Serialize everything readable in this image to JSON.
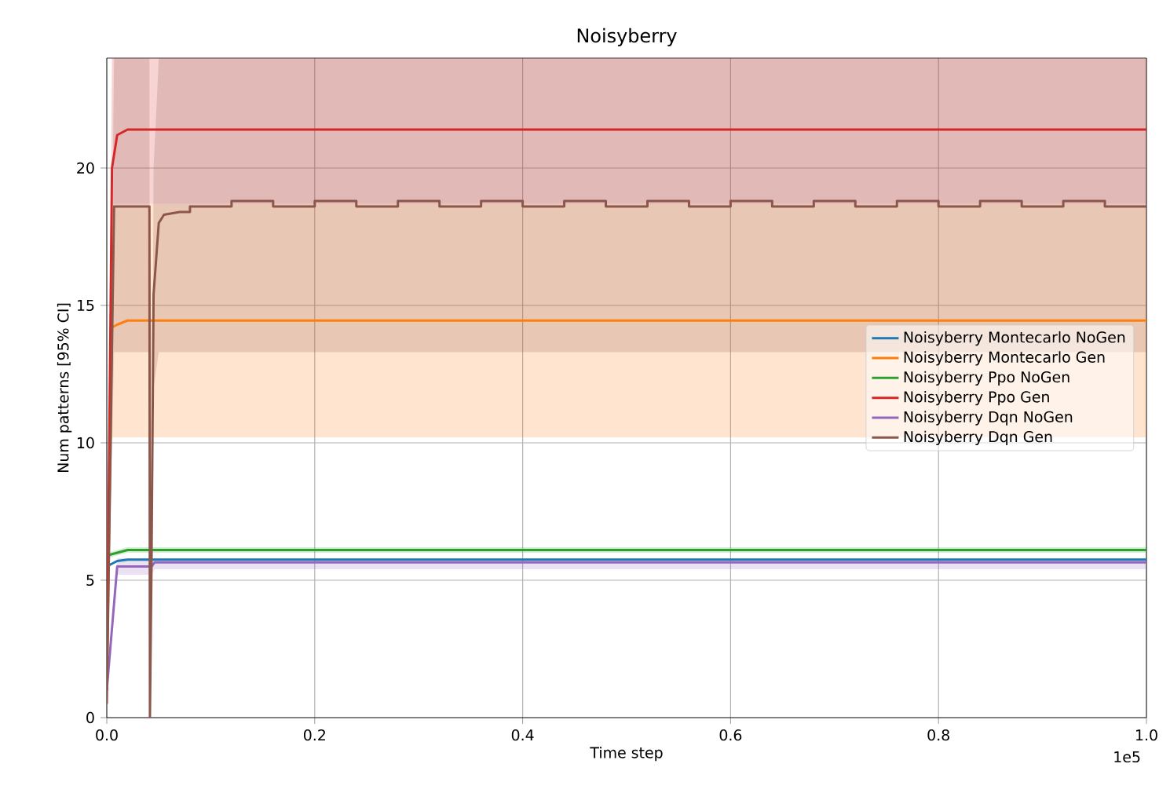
{
  "chart_data": {
    "type": "line",
    "title": "Noisyberry",
    "xlabel": "Time step",
    "ylabel": "Num patterns [95% CI]",
    "xlim": [
      0,
      1
    ],
    "ylim": [
      0,
      24
    ],
    "xticks": [
      {
        "value": 0,
        "label": "0.0"
      },
      0.2,
      0.4,
      0.6,
      0.8,
      {
        "value": 1,
        "label": "1.0"
      }
    ],
    "yticks": [
      0,
      5,
      10,
      15,
      20
    ],
    "grid": true,
    "legend": "right",
    "line_style": "solid",
    "marker": "none",
    "annotations": [
      "1e5"
    ],
    "series": [
      {
        "name": "Noisyberry Montecarlo NoGen",
        "color": "#1f77b4",
        "x": [
          0,
          0.01,
          0.02,
          1
        ],
        "values": [
          5.5,
          5.7,
          5.75,
          5.75
        ]
      },
      {
        "name": "Noisyberry Montecarlo Gen",
        "color": "#ff7f0e",
        "x": [
          0,
          0.005,
          0.01,
          0.02,
          1
        ],
        "values": [
          1,
          14.2,
          14.3,
          14.45,
          14.45
        ],
        "lower": [
          1,
          10.2,
          10.2,
          10.2,
          10.2
        ],
        "upper": [
          1,
          18.7,
          18.7,
          18.7,
          18.7
        ]
      },
      {
        "name": "Noisyberry Ppo NoGen",
        "color": "#2ca02c",
        "x": [
          0,
          0.01,
          0.02,
          1
        ],
        "values": [
          5.9,
          6.0,
          6.1,
          6.1
        ],
        "lower": [
          5.8,
          5.9,
          6.0,
          6.0
        ],
        "upper": [
          6.0,
          6.1,
          6.2,
          6.2
        ]
      },
      {
        "name": "Noisyberry Ppo Gen",
        "color": "#d62728",
        "x": [
          0,
          0.005,
          0.01,
          0.02,
          1
        ],
        "values": [
          1,
          20,
          21.2,
          21.4,
          21.4
        ],
        "lower": [
          1,
          18.7,
          18.7,
          18.7,
          18.7
        ],
        "upper": [
          1,
          24,
          24,
          24,
          24
        ]
      },
      {
        "name": "Noisyberry Dqn NoGen",
        "color": "#9467bd",
        "x": [
          0,
          0.01,
          0.043,
          0.046,
          1
        ],
        "values": [
          1,
          5.5,
          5.5,
          5.65,
          5.65
        ],
        "lower": [
          1,
          5.2,
          5.2,
          5.4,
          5.4
        ],
        "upper": [
          1,
          5.8,
          5.8,
          5.8,
          5.8
        ]
      },
      {
        "name": "Noisyberry Dqn Gen",
        "color": "#8c564b",
        "x": [
          0,
          0.007,
          0.041,
          0.0415,
          0.043,
          0.045,
          0.05,
          0.055,
          0.07,
          0.08,
          0.08,
          0.12,
          0.12,
          0.16,
          0.16,
          0.2,
          0.2,
          0.24,
          0.24,
          0.28,
          0.28,
          0.32,
          0.32,
          0.36,
          0.36,
          0.4,
          0.4,
          0.44,
          0.44,
          0.48,
          0.48,
          0.52,
          0.52,
          0.56,
          0.56,
          0.6,
          0.6,
          0.64,
          0.64,
          0.68,
          0.68,
          0.72,
          0.72,
          0.76,
          0.76,
          0.8,
          0.8,
          0.84,
          0.84,
          0.88,
          0.88,
          0.92,
          0.92,
          0.96,
          0.96,
          1
        ],
        "values": [
          0.5,
          18.6,
          18.6,
          0,
          5.5,
          15.4,
          18.0,
          18.3,
          18.4,
          18.4,
          18.6,
          18.6,
          18.8,
          18.8,
          18.6,
          18.6,
          18.8,
          18.8,
          18.6,
          18.6,
          18.8,
          18.8,
          18.6,
          18.6,
          18.8,
          18.8,
          18.6,
          18.6,
          18.8,
          18.8,
          18.6,
          18.6,
          18.8,
          18.8,
          18.6,
          18.6,
          18.8,
          18.8,
          18.6,
          18.6,
          18.8,
          18.8,
          18.6,
          18.6,
          18.8,
          18.8,
          18.6,
          18.6,
          18.8,
          18.8,
          18.6,
          18.6,
          18.8,
          18.8,
          18.6,
          18.6
        ],
        "lower": [
          0.5,
          13.3,
          13.3,
          0,
          5.5,
          12,
          13.3,
          13.3,
          13.3,
          13.3,
          13.3,
          13.3,
          13.3,
          13.3,
          13.3,
          13.3,
          13.3,
          13.3,
          13.3,
          13.3,
          13.3,
          13.3,
          13.3,
          13.3,
          13.3,
          13.3,
          13.3,
          13.3,
          13.3,
          13.3,
          13.3,
          13.3,
          13.3,
          13.3,
          13.3,
          13.3,
          13.3,
          13.3,
          13.3,
          13.3,
          13.3,
          13.3,
          13.3,
          13.3,
          13.3,
          13.3,
          13.3,
          13.3,
          13.3,
          13.3,
          13.3,
          13.3,
          13.3,
          13.3,
          13.3,
          13.3
        ],
        "upper": [
          0.5,
          24,
          24,
          0,
          5.5,
          20,
          24,
          24,
          24,
          24,
          24,
          24,
          24,
          24,
          24,
          24,
          24,
          24,
          24,
          24,
          24,
          24,
          24,
          24,
          24,
          24,
          24,
          24,
          24,
          24,
          24,
          24,
          24,
          24,
          24,
          24,
          24,
          24,
          24,
          24,
          24,
          24,
          24,
          24,
          24,
          24,
          24,
          24,
          24,
          24,
          24,
          24,
          24,
          24,
          24,
          24
        ]
      }
    ]
  }
}
